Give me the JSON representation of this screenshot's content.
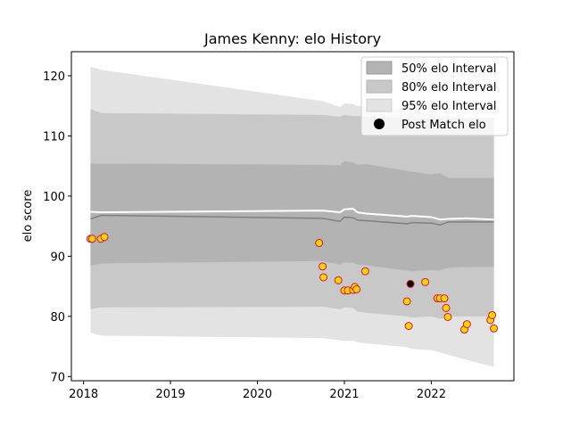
{
  "chart_data": {
    "type": "line",
    "title": "James Kenny: elo History",
    "xlabel": "",
    "ylabel": "elo score",
    "xlim": [
      2017.86,
      2022.95
    ],
    "ylim": [
      69.3,
      124.0
    ],
    "x_ticks": [
      "2018",
      "2019",
      "2020",
      "2021",
      "2022"
    ],
    "x_tick_values": [
      2018,
      2019,
      2020,
      2021,
      2022
    ],
    "y_ticks": [
      "70",
      "80",
      "90",
      "100",
      "110",
      "120"
    ],
    "y_tick_values": [
      70,
      80,
      90,
      100,
      110,
      120
    ],
    "grid": false,
    "legend_placement": "top-right",
    "legend": [
      "50% elo Interval",
      "80% elo Interval",
      "95% elo Interval",
      "Post Match elo"
    ],
    "colors": {
      "band95": "#e3e3e3",
      "band80": "#c8c8c8",
      "band50": "#b3b3b3",
      "mean_line": "#808080",
      "upper_line": "#ffffff",
      "marker_fill": "#ffd700",
      "marker_fill_alt": "#000000",
      "marker_edge": "#dc143c"
    },
    "bands": {
      "x": [
        2018.08,
        2018.2,
        2020.75,
        2020.95,
        2021.0,
        2021.1,
        2021.15,
        2021.25,
        2021.72,
        2021.78,
        2022.0,
        2022.1,
        2022.2,
        2022.4,
        2022.72
      ],
      "p95_upper": [
        121.5,
        121.0,
        115.8,
        114.8,
        115.4,
        115.3,
        115.0,
        114.9,
        114.2,
        114.3,
        113.6,
        113.4,
        113.2,
        113.0,
        113.0
      ],
      "p95_lower": [
        77.3,
        76.8,
        76.4,
        76.0,
        75.9,
        76.0,
        75.7,
        75.5,
        74.9,
        74.6,
        74.4,
        74.0,
        73.6,
        72.8,
        71.6
      ],
      "p80_upper": [
        114.5,
        113.8,
        113.5,
        113.2,
        113.5,
        113.3,
        113.3,
        113.2,
        113.0,
        113.0,
        113.0,
        113.0,
        113.0,
        113.0,
        113.0
      ],
      "p80_lower": [
        81.2,
        81.5,
        81.6,
        81.2,
        81.5,
        81.4,
        80.8,
        80.6,
        80.0,
        79.8,
        80.0,
        79.6,
        80.0,
        80.0,
        80.0
      ],
      "p50_upper": [
        105.4,
        105.4,
        105.2,
        105.1,
        105.8,
        105.6,
        105.2,
        105.3,
        104.2,
        104.0,
        103.6,
        103.8,
        103.0,
        103.0,
        103.0
      ],
      "p50_lower": [
        88.4,
        88.8,
        89.2,
        88.6,
        89.0,
        88.9,
        88.6,
        88.5,
        87.6,
        87.5,
        87.7,
        87.6,
        88.1,
        88.2,
        88.2
      ]
    },
    "series": [
      {
        "name": "mean",
        "x": [
          2018.08,
          2018.2,
          2020.75,
          2020.95,
          2021.0,
          2021.1,
          2021.15,
          2021.25,
          2021.72,
          2021.78,
          2022.0,
          2022.1,
          2022.2,
          2022.4,
          2022.72
        ],
        "values": [
          96.2,
          96.8,
          96.3,
          95.8,
          96.5,
          96.4,
          96.0,
          95.9,
          95.4,
          95.6,
          95.5,
          95.2,
          95.7,
          95.7,
          95.7
        ]
      },
      {
        "name": "upper",
        "x": [
          2018.08,
          2018.2,
          2020.75,
          2020.95,
          2021.0,
          2021.1,
          2021.15,
          2021.25,
          2021.72,
          2021.78,
          2022.0,
          2022.1,
          2022.2,
          2022.4,
          2022.72
        ],
        "values": [
          97.4,
          97.3,
          97.6,
          97.3,
          97.8,
          97.9,
          97.3,
          97.1,
          96.6,
          96.7,
          96.5,
          96.1,
          96.2,
          96.3,
          96.1
        ]
      }
    ],
    "points": [
      {
        "x": 2018.08,
        "y": 92.9,
        "fill": "yellow"
      },
      {
        "x": 2018.1,
        "y": 92.9,
        "fill": "yellow"
      },
      {
        "x": 2018.2,
        "y": 92.9,
        "fill": "yellow"
      },
      {
        "x": 2018.24,
        "y": 93.2,
        "fill": "yellow"
      },
      {
        "x": 2020.71,
        "y": 92.2,
        "fill": "yellow"
      },
      {
        "x": 2020.75,
        "y": 88.3,
        "fill": "yellow"
      },
      {
        "x": 2020.76,
        "y": 86.5,
        "fill": "yellow"
      },
      {
        "x": 2020.93,
        "y": 86.0,
        "fill": "yellow"
      },
      {
        "x": 2021.0,
        "y": 84.3,
        "fill": "yellow"
      },
      {
        "x": 2021.04,
        "y": 84.3,
        "fill": "yellow"
      },
      {
        "x": 2021.1,
        "y": 84.4,
        "fill": "yellow"
      },
      {
        "x": 2021.12,
        "y": 84.9,
        "fill": "yellow"
      },
      {
        "x": 2021.14,
        "y": 84.5,
        "fill": "yellow"
      },
      {
        "x": 2021.24,
        "y": 87.5,
        "fill": "yellow"
      },
      {
        "x": 2021.72,
        "y": 82.5,
        "fill": "yellow"
      },
      {
        "x": 2021.74,
        "y": 78.4,
        "fill": "yellow"
      },
      {
        "x": 2021.76,
        "y": 85.4,
        "fill": "black"
      },
      {
        "x": 2021.93,
        "y": 85.7,
        "fill": "yellow"
      },
      {
        "x": 2022.07,
        "y": 83.0,
        "fill": "yellow"
      },
      {
        "x": 2022.1,
        "y": 83.0,
        "fill": "yellow"
      },
      {
        "x": 2022.15,
        "y": 83.0,
        "fill": "yellow"
      },
      {
        "x": 2022.17,
        "y": 81.4,
        "fill": "yellow"
      },
      {
        "x": 2022.19,
        "y": 79.9,
        "fill": "yellow"
      },
      {
        "x": 2022.38,
        "y": 77.8,
        "fill": "yellow"
      },
      {
        "x": 2022.41,
        "y": 78.7,
        "fill": "yellow"
      },
      {
        "x": 2022.68,
        "y": 79.4,
        "fill": "yellow"
      },
      {
        "x": 2022.7,
        "y": 80.2,
        "fill": "yellow"
      },
      {
        "x": 2022.72,
        "y": 78.0,
        "fill": "yellow"
      }
    ]
  }
}
